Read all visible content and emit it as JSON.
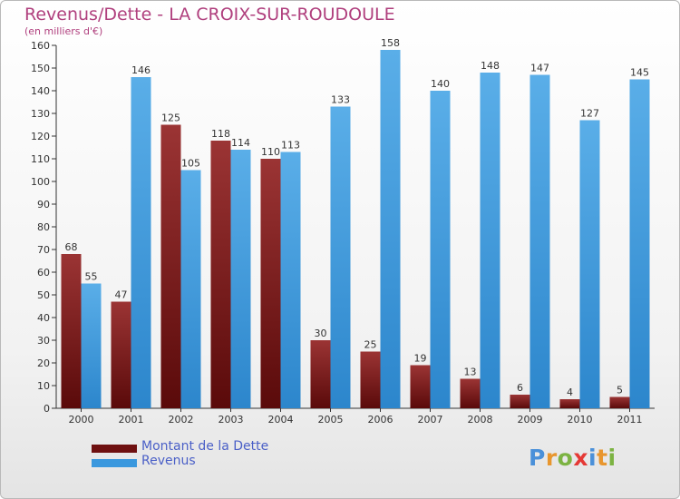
{
  "header": {
    "title": "Revenus/Dette - LA CROIX-SUR-ROUDOULE",
    "subtitle": "(en milliers d'€)"
  },
  "legend": {
    "items": [
      {
        "label": "Montant de la Dette",
        "color": "#7a1a1a"
      },
      {
        "label": "Revenus",
        "color": "#3a98de"
      }
    ]
  },
  "logo": {
    "letters": [
      {
        "char": "P",
        "color": "#4a90d9"
      },
      {
        "char": "r",
        "color": "#e8962e"
      },
      {
        "char": "o",
        "color": "#7cb342"
      },
      {
        "char": "x",
        "color": "#e53935"
      },
      {
        "char": "i",
        "color": "#4a90d9"
      },
      {
        "char": "t",
        "color": "#e8962e"
      },
      {
        "char": "i",
        "color": "#7cb342"
      }
    ]
  },
  "chart_data": {
    "type": "bar",
    "categories": [
      "2000",
      "2001",
      "2002",
      "2003",
      "2004",
      "2005",
      "2006",
      "2007",
      "2008",
      "2009",
      "2010",
      "2011"
    ],
    "series": [
      {
        "name": "Montant de la Dette",
        "color": "#7a1a1a",
        "values": [
          68,
          47,
          125,
          118,
          110,
          30,
          25,
          19,
          13,
          6,
          4,
          5
        ]
      },
      {
        "name": "Revenus",
        "color": "#3a98de",
        "values": [
          55,
          146,
          105,
          114,
          113,
          133,
          158,
          140,
          148,
          147,
          127,
          145
        ]
      }
    ],
    "yticks": [
      0,
      10,
      20,
      30,
      40,
      50,
      60,
      70,
      80,
      90,
      100,
      110,
      120,
      130,
      140,
      150,
      160
    ],
    "ylim": [
      0,
      160
    ],
    "grid": false,
    "data_labels": true
  }
}
